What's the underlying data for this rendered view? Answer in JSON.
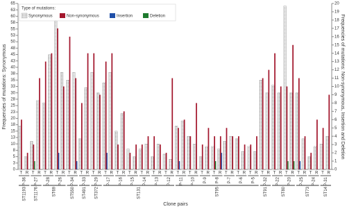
{
  "chart_data": {
    "type": "bar",
    "x_label": "Clone pairs",
    "y_label": "Frequencies of mutations: Synonymous",
    "y2_label": "Frequencies of mutations: Non-synonymous, Insertion and Deletion",
    "legend_title": "Type of mutations:",
    "legend": "top-left",
    "categories": [
      "T",
      "R",
      "T",
      "R",
      "T",
      "R",
      "T",
      "R",
      "T",
      "R",
      "T",
      "R",
      "T",
      "R",
      "T",
      "R",
      "T",
      "R",
      "T",
      "R",
      "T",
      "R",
      "T",
      "R",
      "T",
      "R",
      "T",
      "R",
      "T",
      "R",
      "T",
      "R",
      "T",
      "R",
      "T",
      "R",
      "T",
      "R",
      "T",
      "R",
      "T",
      "R",
      "T",
      "R",
      "T",
      "R",
      "T",
      "R",
      "T",
      "R",
      "T",
      "R"
    ],
    "groups": [
      {
        "name": "ST1193",
        "pairs": [
          "P-36"
        ]
      },
      {
        "name": "ST1176",
        "pairs": [
          "P-27"
        ]
      },
      {
        "name": "ST69",
        "pairs": [
          "P-28",
          "P-26"
        ]
      },
      {
        "name": "ST550",
        "pairs": [
          "P-34"
        ]
      },
      {
        "name": "ST491",
        "pairs": [
          "P-33"
        ]
      },
      {
        "name": "ST372",
        "pairs": [
          "P-29"
        ]
      },
      {
        "name": "ST131",
        "pairs": [
          "P-17",
          "P-16",
          "P-15",
          "P-14",
          "P-13",
          "P-12"
        ]
      },
      {
        "name": "ST95",
        "pairs": [
          "P-11",
          "P-10",
          "P-9",
          "P-8",
          "P-7",
          "P-6",
          "P-5"
        ]
      },
      {
        "name": "ST91",
        "pairs": [
          "P-32"
        ]
      },
      {
        "name": "ST80",
        "pairs": [
          "P-22",
          "P-20"
        ]
      },
      {
        "name": "ST73",
        "pairs": [
          "P-25",
          "P-24"
        ]
      },
      {
        "name": "ST14",
        "pairs": [
          "P-31"
        ]
      }
    ],
    "series": [
      {
        "name": "Synonymous",
        "color": "#c8c8c8",
        "axis": "y",
        "values": [
          17,
          5,
          11,
          27,
          26,
          45,
          61,
          38,
          35,
          38,
          12,
          32,
          38,
          30,
          34,
          38,
          15,
          22,
          8,
          5,
          8,
          10,
          5,
          10,
          6,
          4,
          17,
          19,
          13,
          10,
          5,
          9,
          9,
          8,
          11,
          13,
          12,
          7,
          9,
          7,
          35,
          30,
          33,
          30,
          64,
          30,
          30,
          12,
          5,
          9,
          10,
          13
        ]
      },
      {
        "name": "Non-synonymous",
        "color": "#a3172d",
        "axis": "y2",
        "values": [
          6,
          2,
          3,
          11,
          13,
          14,
          17,
          10,
          16,
          11,
          8,
          14,
          14,
          9,
          13,
          14,
          3,
          7,
          2,
          3,
          3,
          4,
          4,
          3,
          2,
          11,
          5,
          6,
          4,
          8,
          3,
          5,
          4,
          4,
          5,
          4,
          4,
          3,
          3,
          4,
          11,
          12,
          14,
          10,
          10,
          15,
          11,
          4,
          2,
          6,
          5,
          9
        ]
      },
      {
        "name": "Insertion",
        "color": "#1f4fa8",
        "axis": "y2",
        "values": [
          0,
          0,
          0,
          0,
          0,
          0,
          2,
          0,
          0,
          1,
          0,
          0,
          0,
          0,
          2,
          0,
          0,
          0,
          0,
          0,
          0,
          0,
          0,
          0,
          0,
          0,
          1,
          0,
          0,
          0,
          0,
          0,
          0,
          2,
          0,
          0,
          0,
          0,
          0,
          0,
          0,
          0,
          0,
          0,
          0,
          0,
          1,
          0,
          0,
          0,
          0,
          0
        ]
      },
      {
        "name": "Deletion",
        "color": "#1e7a2e",
        "axis": "y2",
        "values": [
          0,
          0,
          1,
          0,
          0,
          0,
          0,
          0,
          0,
          0,
          0,
          0,
          0,
          0,
          0,
          0,
          0,
          0,
          0,
          0,
          0,
          0,
          0,
          0,
          0,
          0,
          0,
          0,
          0,
          0,
          0,
          0,
          1,
          0,
          0,
          0,
          0,
          0,
          0,
          0,
          0,
          0,
          0,
          0,
          1,
          1,
          0,
          0,
          0,
          0,
          0,
          0
        ]
      }
    ],
    "ylim": [
      0,
      65
    ],
    "yticks": [
      0,
      {
        "value": 2.5,
        "label": "3"
      },
      5,
      {
        "value": 7.5,
        "label": "8"
      },
      10,
      {
        "value": 12.5,
        "label": "13"
      },
      15,
      {
        "value": 17.5,
        "label": "18"
      },
      20,
      {
        "value": 22.5,
        "label": "23"
      },
      25,
      {
        "value": 27.5,
        "label": "28"
      },
      30,
      {
        "value": 32.5,
        "label": "33"
      },
      35,
      {
        "value": 37.5,
        "label": "38"
      },
      40,
      {
        "value": 42.5,
        "label": "43"
      },
      45,
      {
        "value": 47.5,
        "label": "48"
      },
      50,
      {
        "value": 52.5,
        "label": "53"
      },
      55,
      {
        "value": 57.5,
        "label": "58"
      },
      60,
      {
        "value": 62.5,
        "label": "63"
      },
      65
    ],
    "y2lim": [
      0,
      20
    ],
    "y2ticks": [
      0,
      1,
      2,
      3,
      4,
      5,
      6,
      7,
      8,
      9,
      10,
      11,
      12,
      13,
      14,
      15,
      16,
      17,
      18,
      19,
      20
    ]
  }
}
